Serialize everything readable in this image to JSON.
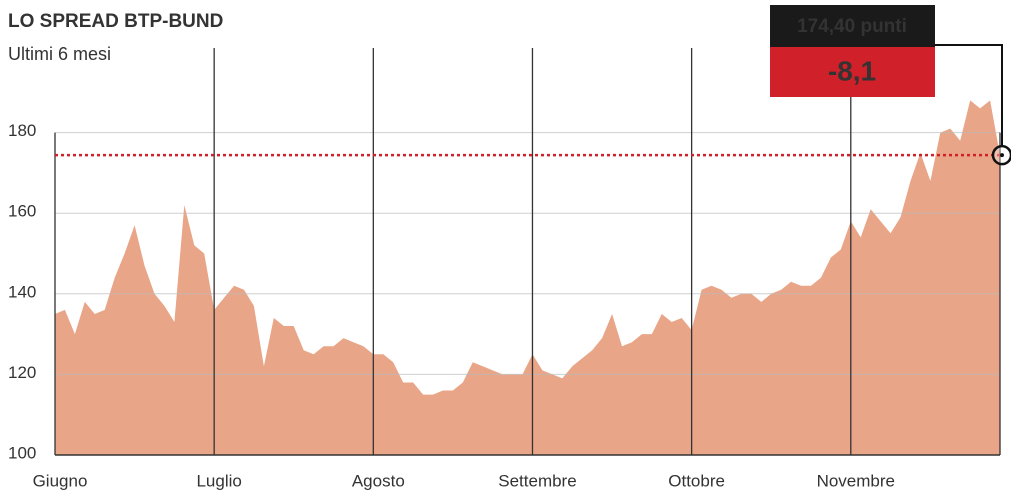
{
  "chart_data": {
    "type": "area",
    "title": "LO SPREAD BTP-BUND",
    "subtitle": "Ultimi 6 mesi",
    "annotations": [
      "174,40 punti",
      "-8,1"
    ],
    "color": "#e9a587",
    "reference_color": "#d0202a",
    "categories": [
      "Giugno",
      null,
      null,
      null,
      null,
      null,
      null,
      null,
      null,
      null,
      null,
      null,
      null,
      null,
      null,
      null,
      "Luglio",
      null,
      null,
      null,
      null,
      null,
      null,
      null,
      null,
      null,
      null,
      null,
      null,
      null,
      null,
      null,
      "Agosto",
      null,
      null,
      null,
      null,
      null,
      null,
      null,
      null,
      null,
      null,
      null,
      null,
      null,
      null,
      null,
      "Settembre",
      null,
      null,
      null,
      null,
      null,
      null,
      null,
      null,
      null,
      null,
      null,
      null,
      null,
      null,
      null,
      "Ottobre",
      null,
      null,
      null,
      null,
      null,
      null,
      null,
      null,
      null,
      null,
      null,
      null,
      null,
      null,
      null,
      "Novembre",
      null,
      null,
      null,
      null,
      null,
      null,
      null,
      null,
      null,
      null,
      null,
      null,
      null,
      null,
      null
    ],
    "values": [
      135,
      136,
      130,
      138,
      135,
      136,
      144,
      150,
      157,
      147,
      140,
      137,
      133,
      162,
      152,
      150,
      136,
      139,
      142,
      141,
      137,
      122,
      134,
      132,
      132,
      126,
      125,
      127,
      127,
      129,
      128,
      127,
      125,
      125,
      123,
      118,
      118,
      115,
      115,
      116,
      116,
      118,
      123,
      122,
      121,
      120,
      120,
      120,
      125,
      121,
      120,
      119,
      122,
      124,
      126,
      129,
      135,
      127,
      128,
      130,
      130,
      135,
      133,
      134,
      131,
      141,
      142,
      141,
      139,
      140,
      140,
      138,
      140,
      141,
      143,
      142,
      142,
      144,
      149,
      151,
      158,
      154,
      161,
      158,
      155,
      159,
      168,
      175,
      168,
      180,
      181,
      178,
      188,
      186,
      188,
      174.4
    ],
    "ylim": [
      100,
      200
    ],
    "yticks": [
      100,
      120,
      140,
      160,
      180
    ],
    "grid": true
  }
}
